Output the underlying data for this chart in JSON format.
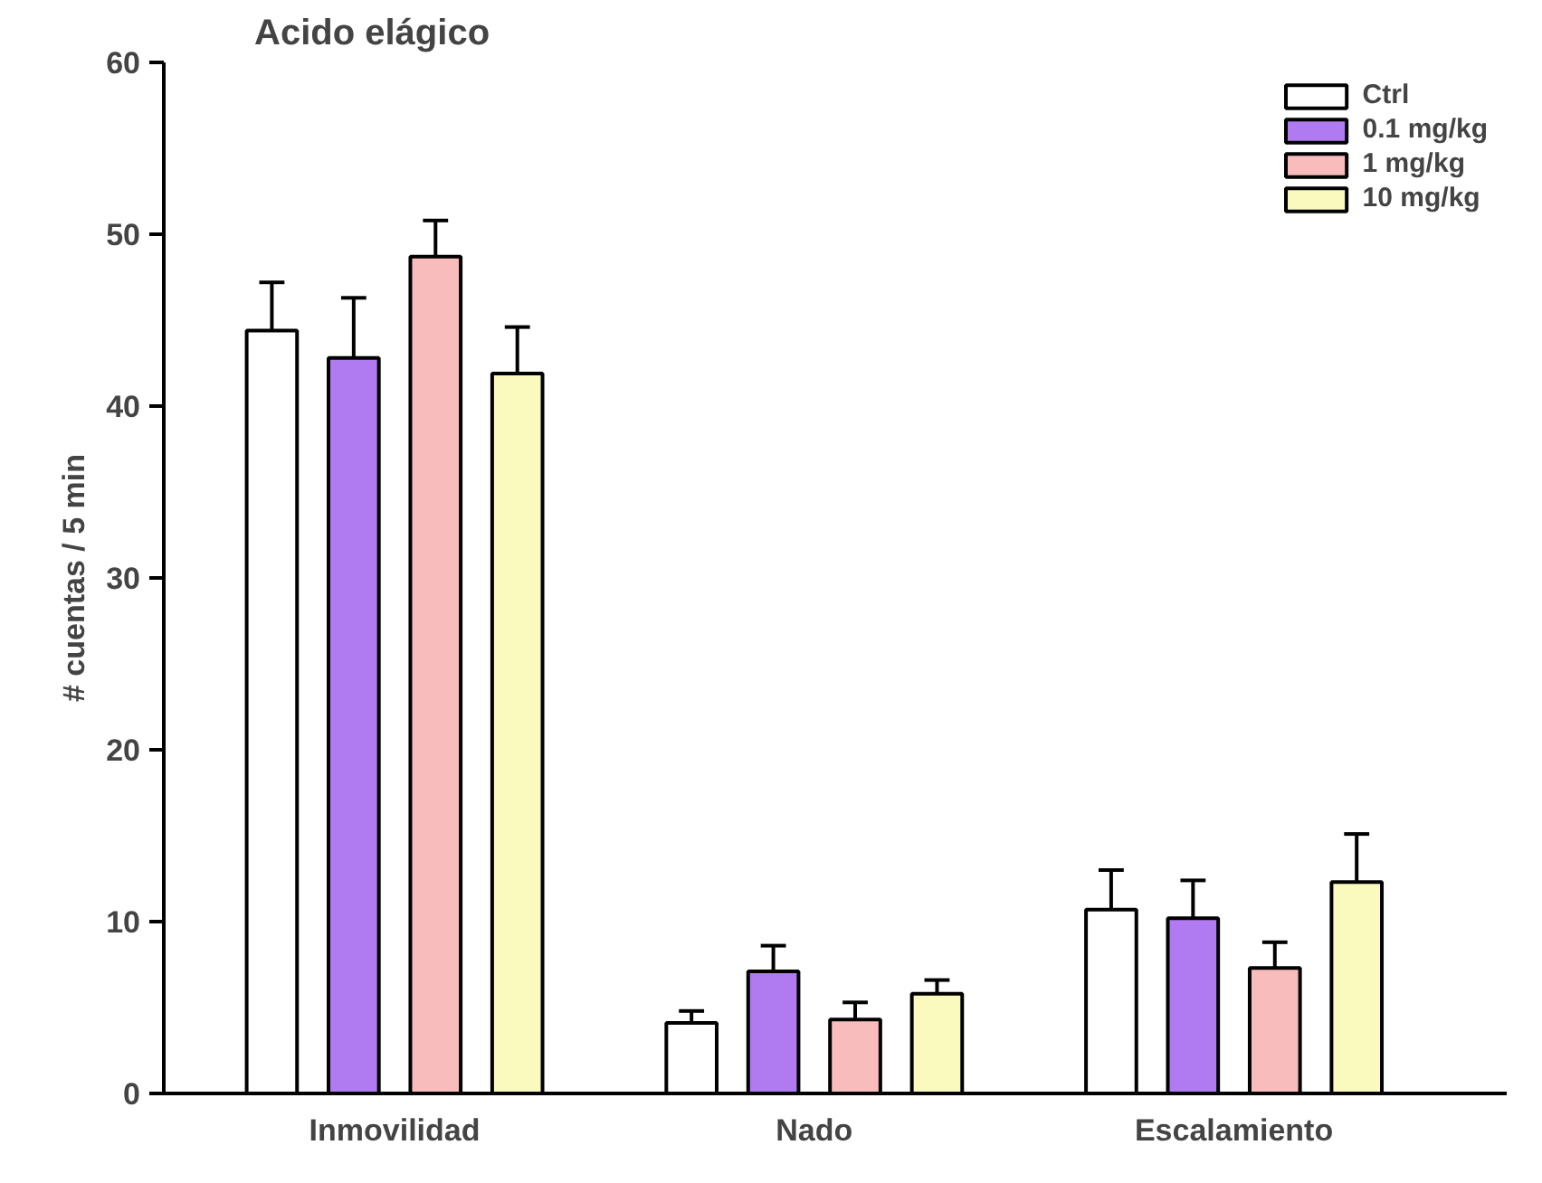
{
  "chart_data": {
    "type": "bar",
    "title": "Acido elágico",
    "ylabel": "# cuentas / 5 min",
    "categories": [
      "Inmovilidad",
      "Nado",
      "Escalamiento"
    ],
    "series": [
      {
        "name": "Ctrl",
        "color": "#ffffff",
        "values": [
          44.4,
          4.1,
          10.7
        ],
        "errors": [
          [
            44.4,
            47.2
          ],
          [
            4.1,
            4.8
          ],
          [
            10.7,
            13.0
          ]
        ]
      },
      {
        "name": "0.1 mg/kg",
        "color": "#b07af0",
        "values": [
          42.8,
          7.1,
          10.2
        ],
        "errors": [
          [
            42.8,
            46.3
          ],
          [
            7.1,
            8.6
          ],
          [
            10.2,
            12.4
          ]
        ]
      },
      {
        "name": "1 mg/kg",
        "color": "#f8bcbc",
        "values": [
          48.7,
          4.3,
          7.3
        ],
        "errors": [
          [
            48.7,
            50.8
          ],
          [
            4.3,
            5.3
          ],
          [
            7.3,
            8.8
          ]
        ]
      },
      {
        "name": "10 mg/kg",
        "color": "#fafabe",
        "values": [
          41.9,
          5.8,
          12.3
        ],
        "errors": [
          [
            41.9,
            44.6
          ],
          [
            5.8,
            6.6
          ],
          [
            12.3,
            15.1
          ]
        ]
      }
    ],
    "ylim": [
      0,
      60
    ],
    "yticks": [
      0,
      10,
      20,
      30,
      40,
      50,
      60
    ],
    "grid": false,
    "legend": "top right"
  }
}
